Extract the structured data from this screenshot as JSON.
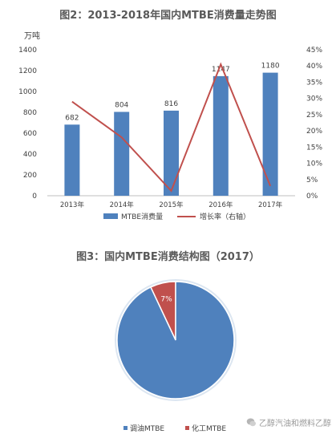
{
  "chart_data": [
    {
      "type": "bar",
      "title": "图2：2013-2018年国内MTBE消费量走势图",
      "y_unit_label": "万吨",
      "categories": [
        "2013年",
        "2014年",
        "2015年",
        "2016年",
        "2017年"
      ],
      "series": [
        {
          "name": "MTBE消费量",
          "type": "bar",
          "axis": "left",
          "color": "#4f81bd",
          "values": [
            682,
            804,
            816,
            1147,
            1180
          ],
          "data_labels": [
            "682",
            "804",
            "816",
            "1147",
            "1180"
          ]
        },
        {
          "name": "增长率（右轴）",
          "type": "line",
          "axis": "right",
          "color": "#c0504d",
          "values": [
            29,
            18,
            1.5,
            40.5,
            3
          ]
        }
      ],
      "ylim_left": [
        0,
        1400
      ],
      "yticks_left": [
        "0",
        "200",
        "400",
        "600",
        "800",
        "1000",
        "1200",
        "1400"
      ],
      "ylim_right": [
        0,
        45
      ],
      "yticks_right": [
        "0%",
        "5%",
        "10%",
        "15%",
        "20%",
        "25%",
        "30%",
        "35%",
        "40%",
        "45%"
      ],
      "grid": false,
      "legend_position": "bottom"
    },
    {
      "type": "pie",
      "title": "图3：国内MTBE消费结构图（2017）",
      "labels": [
        "调油MTBE",
        "化工MTBE"
      ],
      "values": [
        93,
        7
      ],
      "data_labels": [
        "93%",
        "7%"
      ],
      "colors": [
        "#4f81bd",
        "#c0504d"
      ],
      "legend_position": "bottom"
    }
  ],
  "watermark": {
    "text": "乙醇汽油和燃料乙醇",
    "icon": "wechat-icon"
  }
}
